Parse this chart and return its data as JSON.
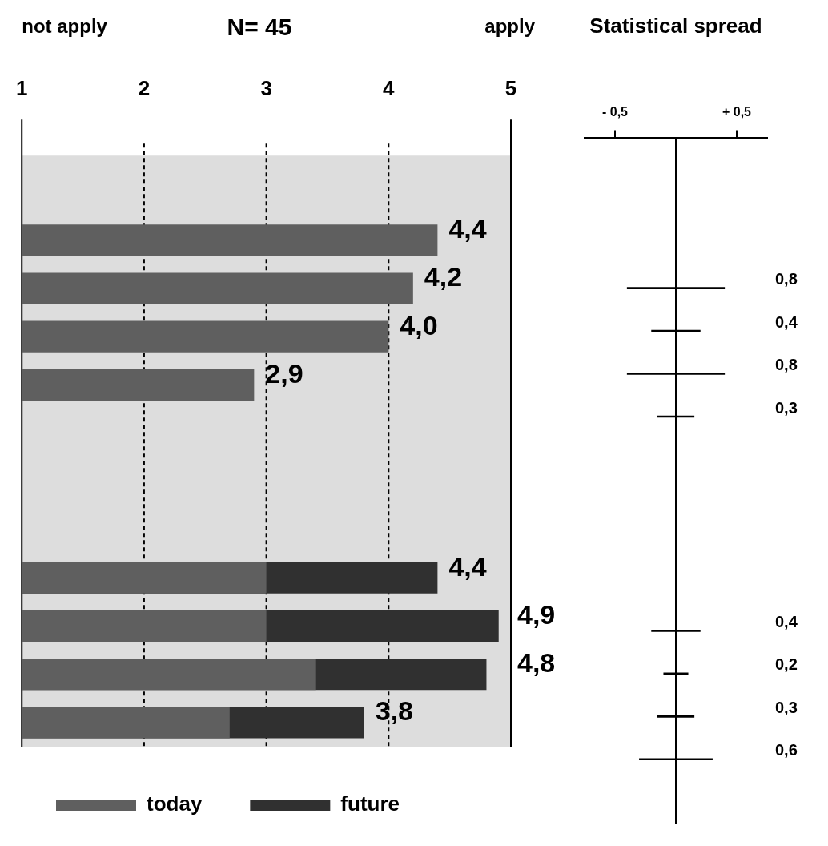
{
  "chart_data": [
    {
      "type": "bar",
      "orientation": "horizontal",
      "title": "N= 45",
      "annotations": [
        "not apply",
        "apply"
      ],
      "categories": [
        null,
        null,
        null,
        null,
        null,
        null,
        null,
        null,
        null,
        null,
        null,
        null,
        null
      ],
      "xlim": [
        1,
        5
      ],
      "xticks": [
        1,
        2,
        3,
        4,
        5
      ],
      "grid": "x",
      "legend": "bottom",
      "bands": [
        {
          "axis": "x",
          "from": 1,
          "to": 5,
          "color": "#dddddd"
        }
      ],
      "series": [
        {
          "name": "today",
          "color": "#5f5f5f",
          "values": [
            null,
            null,
            4.4,
            4.2,
            4.0,
            2.9,
            null,
            null,
            null,
            3.0,
            3.0,
            3.4,
            2.7
          ],
          "value_labels": [
            null,
            null,
            "4,4",
            "4,2",
            "4,0",
            "2,9",
            null,
            null,
            null,
            null,
            null,
            null,
            null
          ]
        },
        {
          "name": "future",
          "color": "#303030",
          "values": [
            null,
            null,
            null,
            null,
            null,
            null,
            null,
            null,
            null,
            4.4,
            4.9,
            4.8,
            3.8
          ],
          "value_labels": [
            null,
            null,
            null,
            null,
            null,
            null,
            null,
            null,
            null,
            "4,4",
            "4,9",
            "4,8",
            "3,8"
          ]
        }
      ]
    },
    {
      "type": "bar",
      "orientation": "horizontal",
      "title": "Statistical spread",
      "categories": [
        null,
        null,
        null,
        null,
        null,
        null,
        null,
        null,
        null,
        null,
        null,
        null,
        null,
        null,
        null,
        null
      ],
      "xlim": [
        -0.75,
        0.75
      ],
      "xticks": [
        {
          "value": -0.5,
          "label": "- 0,5"
        },
        {
          "value": 0.5,
          "label": "+ 0,5"
        }
      ],
      "ref_lines": [
        {
          "axis": "x",
          "value": 0
        }
      ],
      "color": "#000000",
      "base": [
        null,
        null,
        null,
        -0.4,
        -0.2,
        -0.4,
        -0.15,
        null,
        null,
        null,
        null,
        -0.2,
        -0.1,
        -0.15,
        -0.3,
        null
      ],
      "values": [
        null,
        null,
        null,
        0.8,
        0.4,
        0.8,
        0.3,
        null,
        null,
        null,
        null,
        0.4,
        0.2,
        0.3,
        0.6,
        null
      ],
      "value_labels": [
        null,
        null,
        null,
        "0,8",
        "0,4",
        "0,8",
        "0,3",
        null,
        null,
        null,
        null,
        "0,4",
        "0,2",
        "0,3",
        "0,6",
        null
      ]
    }
  ]
}
